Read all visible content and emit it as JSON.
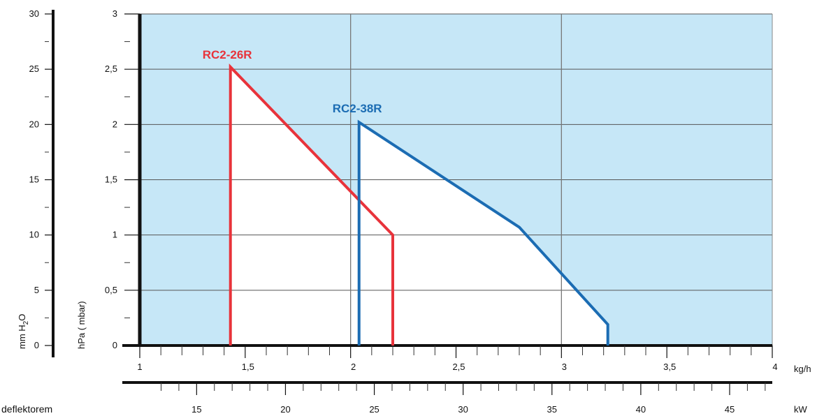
{
  "chart_data": {
    "type": "line",
    "title": "",
    "xlabel": "kg/h",
    "x2label": "kW",
    "ylabel": "hPa ( mbar)",
    "y2label": "mm H2O",
    "xlim": [
      1,
      4
    ],
    "ylim": [
      0,
      3
    ],
    "x2lim": [
      11.8,
      47.4
    ],
    "y2lim": [
      0,
      30
    ],
    "x_ticks": [
      "1",
      "1,5",
      "2",
      "2,5",
      "3",
      "3,5",
      "4"
    ],
    "x_tick_values": [
      1,
      1.5,
      2,
      2.5,
      3,
      3.5,
      4
    ],
    "x2_ticks": [
      "15",
      "20",
      "25",
      "30",
      "35",
      "40",
      "45"
    ],
    "x2_tick_values": [
      15,
      20,
      25,
      30,
      35,
      40,
      45
    ],
    "y_ticks": [
      "0",
      "0,5",
      "1",
      "1,5",
      "2",
      "2,5",
      "3"
    ],
    "y_tick_values": [
      0,
      0.5,
      1,
      1.5,
      2,
      2.5,
      3
    ],
    "y2_ticks": [
      "0",
      "5",
      "10",
      "15",
      "20",
      "25",
      "30"
    ],
    "y2_tick_values": [
      0,
      5,
      10,
      15,
      20,
      25,
      30
    ],
    "grid": true,
    "background_color": "#c6e7f7",
    "series": [
      {
        "name": "RC2-26R",
        "color": "#e8333b",
        "x": [
          1.43,
          1.43,
          2.2,
          2.2
        ],
        "y": [
          0,
          2.52,
          1.0,
          0
        ]
      },
      {
        "name": "RC2-38R",
        "color": "#1b6cb3",
        "x": [
          2.04,
          2.04,
          2.8,
          3.22,
          3.22
        ],
        "y": [
          0,
          2.02,
          1.07,
          0.19,
          0
        ]
      }
    ]
  },
  "footnote": "deflektorem"
}
